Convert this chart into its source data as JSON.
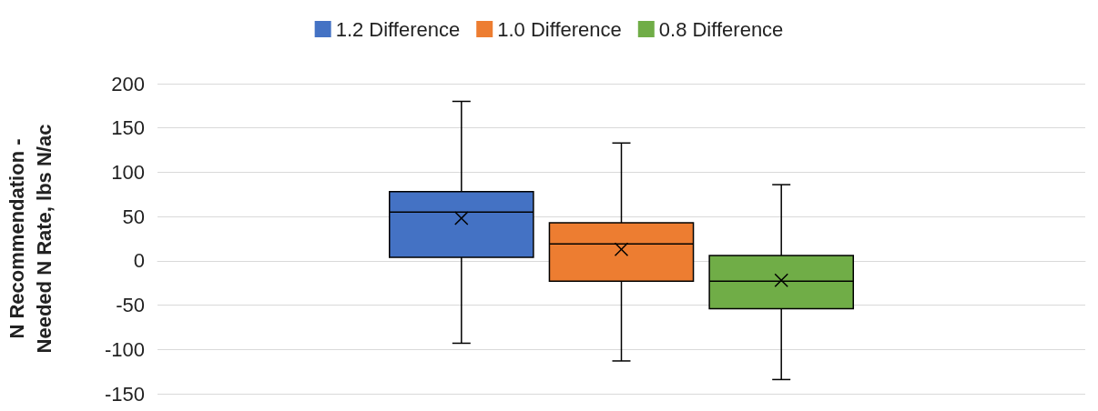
{
  "chart_data": {
    "type": "box",
    "ylabel": "N Recommendation - Needed N Rate, lbs N/ac",
    "categories": [
      null
    ],
    "ylim": [
      -150,
      200
    ],
    "yticks": [
      -150,
      -100,
      -50,
      0,
      50,
      100,
      150,
      200
    ],
    "grid": "y",
    "legend": "top",
    "series": [
      {
        "name": "1.2 Difference",
        "color": "#4472c4",
        "boxes": [
          {
            "low": -93,
            "q1": 4,
            "median": 55,
            "q3": 78,
            "high": 180,
            "mean": 48
          }
        ]
      },
      {
        "name": "1.0 Difference",
        "color": "#ed7d31",
        "boxes": [
          {
            "low": -113,
            "q1": -23,
            "median": 19,
            "q3": 43,
            "high": 133,
            "mean": 13
          }
        ]
      },
      {
        "name": "0.8 Difference",
        "color": "#70ad47",
        "boxes": [
          {
            "low": -134,
            "q1": -54,
            "median": -23,
            "q3": 6,
            "high": 86,
            "mean": -22
          }
        ]
      }
    ]
  }
}
